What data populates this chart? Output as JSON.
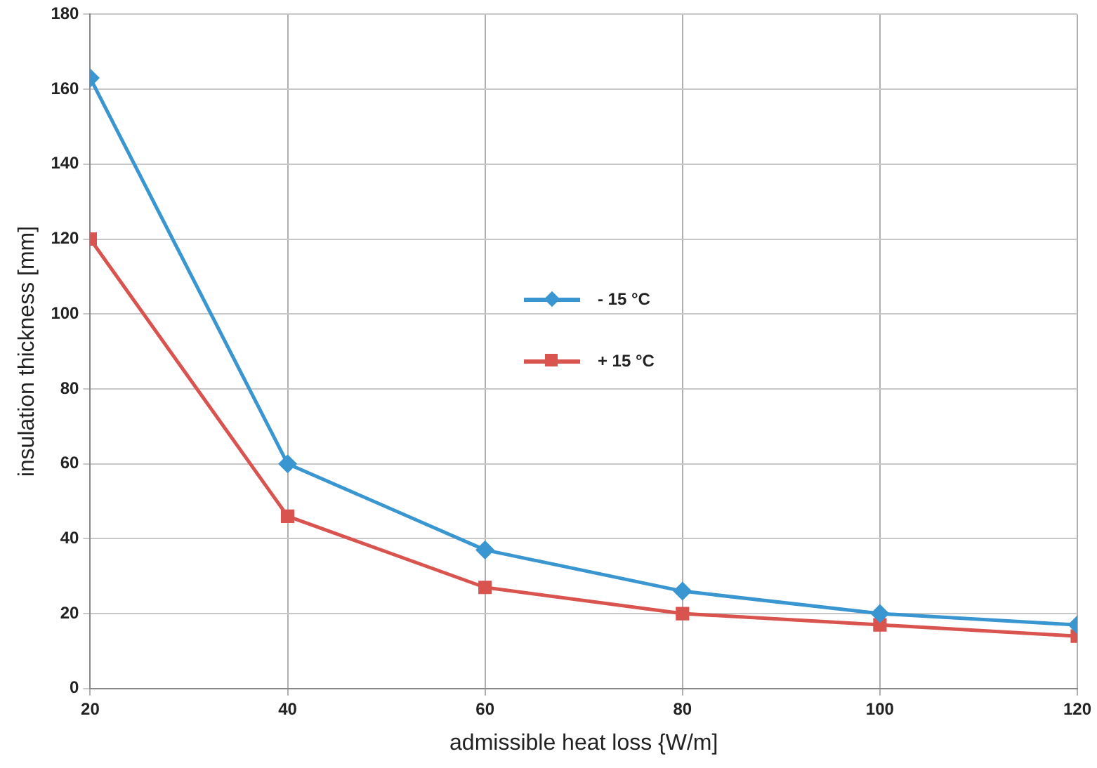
{
  "chart_data": {
    "type": "line",
    "xlabel": "admissible heat loss {W/m]",
    "ylabel": "insulation thickness [mm]",
    "x": [
      20,
      40,
      60,
      80,
      100,
      120
    ],
    "series": [
      {
        "name": "- 15  °C",
        "color": "#3a96d0",
        "marker": "diamond",
        "values": [
          163,
          60,
          37,
          26,
          20,
          17
        ]
      },
      {
        "name": "+ 15  °C",
        "color": "#d9534f",
        "marker": "square",
        "values": [
          120,
          46,
          27,
          20,
          17,
          14
        ]
      }
    ],
    "xlim": [
      20,
      120
    ],
    "xticks": [
      20,
      40,
      60,
      80,
      100,
      120
    ],
    "ylim": [
      0,
      180
    ],
    "yticks": [
      0,
      20,
      40,
      60,
      80,
      100,
      120,
      140,
      160,
      180
    ],
    "grid": true,
    "legend": "center",
    "line_style": "solid"
  }
}
